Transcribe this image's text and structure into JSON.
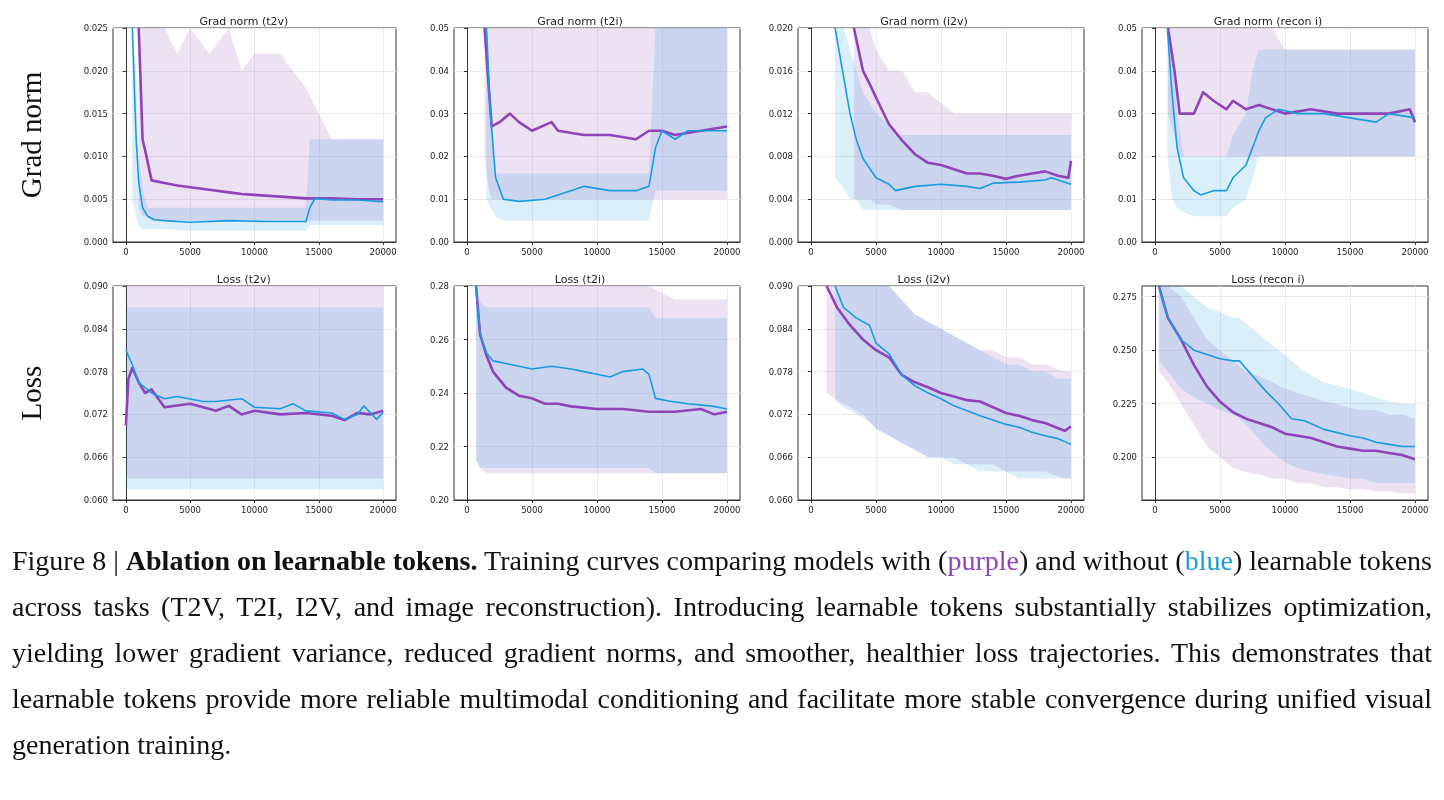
{
  "chart_data": [
    {
      "type": "line",
      "title": "Grad norm (t2v)",
      "ylabel": "Grad norm",
      "grid": true,
      "xlim": [
        -1000,
        21000
      ],
      "xticks": [
        0,
        5000,
        10000,
        15000,
        20000
      ],
      "ylim": [
        0,
        0.025
      ],
      "yticks": [
        {
          "value": 0,
          "label": "0.000"
        },
        {
          "value": 0.005,
          "label": "0.005"
        },
        {
          "value": 0.01,
          "label": "0.010"
        },
        {
          "value": 0.015,
          "label": "0.015"
        },
        {
          "value": 0.02,
          "label": "0.020"
        },
        {
          "value": 0.025,
          "label": "0.025"
        }
      ],
      "annotations": [
        "Figure 8 | ",
        "Ablation on learnable tokens.",
        " Training curves comparing models with (",
        "purple",
        ") and without (",
        "blue",
        ") learnable tokens across tasks (T2V, T2I, I2V, and image reconstruction). Introducing learnable tokens substantially stabilizes optimization, yielding lower gradient variance, reduced gradient norms, and smoother, healthier loss trajectories. This demonstrates that learnable tokens provide more reliable multimodal conditioning and facilitate more stable convergence during unified visual generation training."
      ],
      "series": [
        {
          "color": "#8e44b8",
          "x": [
            1000,
            1300,
            1600,
            2000,
            3000,
            4000,
            5000,
            6500,
            8000,
            9000,
            10000,
            12000,
            14000,
            16000,
            18000,
            20000
          ],
          "values": [
            0.025,
            0.012,
            0.01,
            0.0072,
            0.0069,
            0.0066,
            0.0064,
            0.0061,
            0.0058,
            0.0056,
            0.0055,
            0.0053,
            0.0051,
            0.0051,
            0.005,
            0.005
          ],
          "lower": [
            0.004,
            0.003,
            0.003,
            0.0025,
            0.0025,
            0.0025,
            0.0025,
            0.0025,
            0.0025,
            0.0025,
            0.0025,
            0.0025,
            0.0025,
            0.0025,
            0.0025,
            0.0025
          ],
          "upper": [
            0.025,
            0.025,
            0.025,
            0.025,
            0.025,
            0.022,
            0.025,
            0.022,
            0.025,
            0.02,
            0.022,
            0.022,
            0.018,
            0.012,
            0.012,
            0.012
          ]
        },
        {
          "color": "#1a9be0",
          "x": [
            500,
            800,
            1000,
            1300,
            1700,
            2200,
            3000,
            5000,
            8000,
            11000,
            14000,
            14300,
            14700,
            16000,
            18000,
            20000
          ],
          "values": [
            0.025,
            0.012,
            0.007,
            0.004,
            0.003,
            0.0026,
            0.0025,
            0.0023,
            0.0025,
            0.0024,
            0.0024,
            0.004,
            0.0051,
            0.0049,
            0.0049,
            0.0047
          ],
          "lower": [
            0.005,
            0.003,
            0.002,
            0.0015,
            0.0015,
            0.0015,
            0.0015,
            0.0013,
            0.0013,
            0.0013,
            0.0013,
            0.002,
            0.002,
            0.002,
            0.002,
            0.002
          ],
          "upper": [
            0.025,
            0.02,
            0.01,
            0.006,
            0.004,
            0.004,
            0.004,
            0.004,
            0.004,
            0.004,
            0.004,
            0.012,
            0.012,
            0.012,
            0.012,
            0.012
          ]
        }
      ]
    },
    {
      "type": "line",
      "title": "Grad norm (t2i)",
      "grid": true,
      "xlim": [
        -1000,
        21000
      ],
      "xticks": [
        0,
        5000,
        10000,
        15000,
        20000
      ],
      "ylim": [
        0,
        0.05
      ],
      "yticks": [
        {
          "value": 0,
          "label": "0.00"
        },
        {
          "value": 0.01,
          "label": "0.01"
        },
        {
          "value": 0.02,
          "label": "0.02"
        },
        {
          "value": 0.03,
          "label": "0.03"
        },
        {
          "value": 0.04,
          "label": "0.04"
        },
        {
          "value": 0.05,
          "label": "0.05"
        }
      ],
      "series": [
        {
          "color": "#8e44b8",
          "x": [
            1350,
            1700,
            1900,
            2500,
            3300,
            4000,
            5000,
            6500,
            7000,
            9000,
            11000,
            13000,
            14000,
            15000,
            16000,
            18000,
            20000
          ],
          "values": [
            0.05,
            0.035,
            0.027,
            0.028,
            0.03,
            0.028,
            0.026,
            0.028,
            0.026,
            0.025,
            0.025,
            0.024,
            0.026,
            0.026,
            0.025,
            0.026,
            0.027
          ],
          "lower": [
            0.02,
            0.012,
            0.01,
            0.01,
            0.01,
            0.01,
            0.01,
            0.01,
            0.01,
            0.01,
            0.01,
            0.01,
            0.01,
            0.01,
            0.01,
            0.01,
            0.01
          ],
          "upper": [
            0.05,
            0.05,
            0.05,
            0.05,
            0.05,
            0.05,
            0.05,
            0.05,
            0.05,
            0.05,
            0.05,
            0.05,
            0.05,
            0.05,
            0.05,
            0.05,
            0.05
          ]
        },
        {
          "color": "#1a9be0",
          "x": [
            1500,
            1800,
            2200,
            2800,
            4000,
            6000,
            8000,
            9000,
            11000,
            13000,
            14000,
            14500,
            15000,
            16000,
            17000,
            18000,
            20000
          ],
          "values": [
            0.05,
            0.03,
            0.015,
            0.01,
            0.0095,
            0.01,
            0.012,
            0.013,
            0.012,
            0.012,
            0.013,
            0.022,
            0.026,
            0.024,
            0.026,
            0.026,
            0.026
          ],
          "lower": [
            0.01,
            0.008,
            0.006,
            0.005,
            0.005,
            0.005,
            0.005,
            0.005,
            0.005,
            0.005,
            0.005,
            0.012,
            0.012,
            0.012,
            0.012,
            0.012,
            0.012
          ],
          "upper": [
            0.05,
            0.035,
            0.016,
            0.016,
            0.016,
            0.016,
            0.016,
            0.016,
            0.016,
            0.016,
            0.016,
            0.05,
            0.05,
            0.05,
            0.05,
            0.05,
            0.05
          ]
        }
      ]
    },
    {
      "type": "line",
      "title": "Grad norm (i2v)",
      "grid": true,
      "xlim": [
        -1000,
        21000
      ],
      "xticks": [
        0,
        5000,
        10000,
        15000,
        20000
      ],
      "ylim": [
        0,
        0.02
      ],
      "yticks": [
        {
          "value": 0,
          "label": "0.000"
        },
        {
          "value": 0.004,
          "label": "0.004"
        },
        {
          "value": 0.008,
          "label": "0.008"
        },
        {
          "value": 0.012,
          "label": "0.012"
        },
        {
          "value": 0.016,
          "label": "0.016"
        },
        {
          "value": 0.02,
          "label": "0.020"
        }
      ],
      "series": [
        {
          "color": "#8e44b8",
          "x": [
            3300,
            4000,
            4500,
            5000,
            6000,
            7000,
            8000,
            9000,
            10000,
            11000,
            12000,
            13000,
            14000,
            15000,
            16000,
            17000,
            18000,
            19000,
            19800,
            20000
          ],
          "values": [
            0.02,
            0.016,
            0.0148,
            0.0135,
            0.011,
            0.0095,
            0.0082,
            0.0074,
            0.0072,
            0.0068,
            0.0064,
            0.0064,
            0.0062,
            0.0059,
            0.0062,
            0.0064,
            0.0066,
            0.0062,
            0.006,
            0.0076
          ],
          "lower": [
            0.004,
            0.004,
            0.004,
            0.0035,
            0.0035,
            0.003,
            0.003,
            0.003,
            0.003,
            0.003,
            0.003,
            0.003,
            0.003,
            0.003,
            0.003,
            0.003,
            0.003,
            0.003,
            0.003,
            0.003
          ],
          "upper": [
            0.02,
            0.02,
            0.02,
            0.018,
            0.016,
            0.016,
            0.014,
            0.014,
            0.013,
            0.012,
            0.012,
            0.012,
            0.012,
            0.012,
            0.012,
            0.012,
            0.012,
            0.012,
            0.012,
            0.012
          ]
        },
        {
          "color": "#1a9be0",
          "x": [
            1850,
            2500,
            3000,
            3500,
            4000,
            5000,
            6000,
            6500,
            8000,
            10000,
            12000,
            13000,
            14000,
            16000,
            18000,
            18500,
            20000
          ],
          "values": [
            0.02,
            0.0155,
            0.012,
            0.0095,
            0.0078,
            0.006,
            0.0054,
            0.0048,
            0.0052,
            0.0054,
            0.0052,
            0.005,
            0.0055,
            0.0056,
            0.0058,
            0.006,
            0.0054
          ],
          "lower": [
            0.006,
            0.005,
            0.004,
            0.004,
            0.003,
            0.003,
            0.003,
            0.003,
            0.003,
            0.003,
            0.003,
            0.003,
            0.003,
            0.003,
            0.003,
            0.003,
            0.003
          ],
          "upper": [
            0.02,
            0.02,
            0.018,
            0.016,
            0.014,
            0.012,
            0.011,
            0.01,
            0.01,
            0.01,
            0.01,
            0.01,
            0.01,
            0.01,
            0.01,
            0.01,
            0.01
          ]
        }
      ]
    },
    {
      "type": "line",
      "title": "Grad norm (recon i)",
      "grid": true,
      "xlim": [
        -1000,
        21000
      ],
      "xticks": [
        0,
        5000,
        10000,
        15000,
        20000
      ],
      "ylim": [
        0,
        0.05
      ],
      "yticks": [
        {
          "value": 0,
          "label": "0.00"
        },
        {
          "value": 0.01,
          "label": "0.01"
        },
        {
          "value": 0.02,
          "label": "0.02"
        },
        {
          "value": 0.03,
          "label": "0.03"
        },
        {
          "value": 0.04,
          "label": "0.04"
        },
        {
          "value": 0.05,
          "label": "0.05"
        }
      ],
      "series": [
        {
          "color": "#8e44b8",
          "x": [
            1000,
            1500,
            1900,
            2500,
            3000,
            3700,
            4500,
            5500,
            6000,
            7000,
            8000,
            9000,
            10000,
            12000,
            14000,
            16000,
            18000,
            19600,
            20000
          ],
          "values": [
            0.05,
            0.04,
            0.03,
            0.03,
            0.03,
            0.035,
            0.033,
            0.031,
            0.033,
            0.031,
            0.032,
            0.031,
            0.03,
            0.031,
            0.03,
            0.03,
            0.03,
            0.031,
            0.028
          ],
          "lower": [
            0.03,
            0.025,
            0.02,
            0.02,
            0.02,
            0.02,
            0.02,
            0.02,
            0.02,
            0.02,
            0.02,
            0.02,
            0.02,
            0.02,
            0.02,
            0.02,
            0.02,
            0.02,
            0.02
          ],
          "upper": [
            0.05,
            0.05,
            0.05,
            0.05,
            0.05,
            0.05,
            0.05,
            0.05,
            0.05,
            0.05,
            0.05,
            0.05,
            0.045,
            0.045,
            0.045,
            0.045,
            0.045,
            0.045,
            0.045
          ]
        },
        {
          "color": "#1a9be0",
          "x": [
            950,
            1300,
            1700,
            2200,
            3000,
            3500,
            4500,
            5500,
            6000,
            7000,
            7500,
            8000,
            8500,
            9500,
            11000,
            13000,
            15000,
            17000,
            18000,
            20000
          ],
          "values": [
            0.05,
            0.035,
            0.022,
            0.015,
            0.012,
            0.011,
            0.012,
            0.012,
            0.015,
            0.018,
            0.022,
            0.026,
            0.029,
            0.031,
            0.03,
            0.03,
            0.029,
            0.028,
            0.03,
            0.029
          ],
          "lower": [
            0.02,
            0.01,
            0.008,
            0.007,
            0.006,
            0.006,
            0.006,
            0.006,
            0.008,
            0.01,
            0.015,
            0.02,
            0.02,
            0.02,
            0.02,
            0.02,
            0.02,
            0.02,
            0.02,
            0.02
          ],
          "upper": [
            0.05,
            0.045,
            0.03,
            0.02,
            0.02,
            0.02,
            0.02,
            0.02,
            0.025,
            0.03,
            0.04,
            0.045,
            0.045,
            0.045,
            0.045,
            0.045,
            0.045,
            0.045,
            0.045,
            0.045
          ]
        }
      ]
    },
    {
      "type": "line",
      "title": "Loss (t2v)",
      "ylabel": "Loss",
      "grid": true,
      "xlim": [
        -1000,
        21000
      ],
      "xticks": [
        0,
        5000,
        10000,
        15000,
        20000
      ],
      "ylim": [
        0.06,
        0.09
      ],
      "yticks": [
        {
          "value": 0.06,
          "label": "0.060"
        },
        {
          "value": 0.066,
          "label": "0.066"
        },
        {
          "value": 0.072,
          "label": "0.072"
        },
        {
          "value": 0.078,
          "label": "0.078"
        },
        {
          "value": 0.084,
          "label": "0.084"
        },
        {
          "value": 0.09,
          "label": "0.090"
        }
      ],
      "series": [
        {
          "color": "#8e44b8",
          "x": [
            0,
            200,
            500,
            1000,
            1500,
            2000,
            3000,
            5000,
            7000,
            8000,
            9000,
            10000,
            12000,
            14000,
            16000,
            17000,
            18000,
            19000,
            20000
          ],
          "values": [
            0.0705,
            0.077,
            0.0785,
            0.0765,
            0.075,
            0.0755,
            0.073,
            0.0735,
            0.0725,
            0.0732,
            0.072,
            0.0725,
            0.072,
            0.0722,
            0.0718,
            0.0712,
            0.0722,
            0.072,
            0.0725
          ],
          "lower": [
            0.064,
            0.063,
            0.063,
            0.063,
            0.063,
            0.063,
            0.063,
            0.063,
            0.063,
            0.063,
            0.063,
            0.063,
            0.063,
            0.063,
            0.063,
            0.063,
            0.063,
            0.063,
            0.063
          ],
          "upper": [
            0.09,
            0.09,
            0.09,
            0.09,
            0.09,
            0.09,
            0.09,
            0.09,
            0.09,
            0.09,
            0.09,
            0.09,
            0.09,
            0.09,
            0.09,
            0.09,
            0.09,
            0.09,
            0.09
          ]
        },
        {
          "color": "#1a9be0",
          "x": [
            0,
            500,
            1000,
            2000,
            3000,
            4000,
            6000,
            7000,
            9000,
            10000,
            12000,
            13000,
            14000,
            16000,
            17000,
            18000,
            18500,
            19500,
            20000
          ],
          "values": [
            0.081,
            0.079,
            0.0765,
            0.075,
            0.0742,
            0.0745,
            0.0738,
            0.0738,
            0.0742,
            0.073,
            0.0728,
            0.0735,
            0.0725,
            0.0722,
            0.0713,
            0.072,
            0.0732,
            0.0713,
            0.0723
          ],
          "lower": [
            0.0615,
            0.0615,
            0.0615,
            0.0615,
            0.0615,
            0.0615,
            0.0615,
            0.0615,
            0.0615,
            0.0615,
            0.0615,
            0.0615,
            0.0615,
            0.0615,
            0.0615,
            0.0615,
            0.0615,
            0.0615,
            0.0615
          ],
          "upper": [
            0.087,
            0.087,
            0.087,
            0.087,
            0.087,
            0.087,
            0.087,
            0.087,
            0.087,
            0.087,
            0.087,
            0.087,
            0.087,
            0.087,
            0.087,
            0.087,
            0.087,
            0.087,
            0.087
          ]
        }
      ]
    },
    {
      "type": "line",
      "title": "Loss (t2i)",
      "grid": true,
      "xlim": [
        -1000,
        21000
      ],
      "xticks": [
        0,
        5000,
        10000,
        15000,
        20000
      ],
      "ylim": [
        0.2,
        0.28
      ],
      "yticks": [
        {
          "value": 0.2,
          "label": "0.20"
        },
        {
          "value": 0.22,
          "label": "0.22"
        },
        {
          "value": 0.24,
          "label": "0.24"
        },
        {
          "value": 0.26,
          "label": "0.26"
        },
        {
          "value": 0.28,
          "label": "0.28"
        }
      ],
      "series": [
        {
          "color": "#8e44b8",
          "x": [
            700,
            1000,
            1500,
            2000,
            3000,
            4000,
            5000,
            6000,
            7000,
            8000,
            10000,
            12000,
            14000,
            16000,
            18000,
            19000,
            20000
          ],
          "values": [
            0.28,
            0.262,
            0.254,
            0.248,
            0.242,
            0.239,
            0.238,
            0.236,
            0.236,
            0.235,
            0.234,
            0.234,
            0.233,
            0.233,
            0.234,
            0.232,
            0.233
          ],
          "lower": [
            0.215,
            0.212,
            0.21,
            0.21,
            0.21,
            0.21,
            0.21,
            0.21,
            0.21,
            0.21,
            0.21,
            0.21,
            0.21,
            0.21,
            0.21,
            0.21,
            0.21
          ],
          "upper": [
            0.28,
            0.28,
            0.28,
            0.28,
            0.28,
            0.28,
            0.28,
            0.28,
            0.28,
            0.28,
            0.28,
            0.28,
            0.28,
            0.275,
            0.275,
            0.275,
            0.275
          ]
        },
        {
          "color": "#1a9be0",
          "x": [
            700,
            1000,
            1500,
            2000,
            3000,
            4000,
            5000,
            6500,
            8000,
            9000,
            10000,
            11000,
            12000,
            13500,
            14000,
            14500,
            15500,
            17000,
            19000,
            20000
          ],
          "values": [
            0.28,
            0.262,
            0.255,
            0.252,
            0.251,
            0.25,
            0.249,
            0.25,
            0.249,
            0.248,
            0.247,
            0.246,
            0.248,
            0.249,
            0.247,
            0.238,
            0.237,
            0.236,
            0.235,
            0.234
          ],
          "lower": [
            0.215,
            0.212,
            0.212,
            0.212,
            0.212,
            0.212,
            0.212,
            0.212,
            0.212,
            0.212,
            0.212,
            0.212,
            0.212,
            0.212,
            0.212,
            0.21,
            0.21,
            0.21,
            0.21,
            0.21
          ],
          "upper": [
            0.276,
            0.274,
            0.272,
            0.272,
            0.272,
            0.272,
            0.272,
            0.272,
            0.272,
            0.272,
            0.272,
            0.272,
            0.272,
            0.272,
            0.272,
            0.268,
            0.268,
            0.268,
            0.268,
            0.268
          ]
        }
      ]
    },
    {
      "type": "line",
      "title": "Loss (i2v)",
      "grid": true,
      "xlim": [
        -1000,
        21000
      ],
      "xticks": [
        0,
        5000,
        10000,
        15000,
        20000
      ],
      "ylim": [
        0.06,
        0.09
      ],
      "yticks": [
        {
          "value": 0.06,
          "label": "0.060"
        },
        {
          "value": 0.066,
          "label": "0.066"
        },
        {
          "value": 0.072,
          "label": "0.072"
        },
        {
          "value": 0.078,
          "label": "0.078"
        },
        {
          "value": 0.084,
          "label": "0.084"
        },
        {
          "value": 0.09,
          "label": "0.090"
        }
      ],
      "series": [
        {
          "color": "#8e44b8",
          "x": [
            1200,
            2000,
            3000,
            4000,
            5000,
            6000,
            7000,
            8000,
            9000,
            10000,
            11000,
            12000,
            13000,
            14000,
            15000,
            16000,
            17000,
            18000,
            19500,
            20000
          ],
          "values": [
            0.09,
            0.087,
            0.0845,
            0.0825,
            0.081,
            0.08,
            0.0775,
            0.0765,
            0.0758,
            0.075,
            0.0745,
            0.074,
            0.0738,
            0.073,
            0.0722,
            0.0718,
            0.0712,
            0.0708,
            0.0697,
            0.0703
          ],
          "lower": [
            0.075,
            0.074,
            0.073,
            0.072,
            0.07,
            0.069,
            0.068,
            0.067,
            0.066,
            0.066,
            0.066,
            0.065,
            0.065,
            0.065,
            0.064,
            0.064,
            0.064,
            0.064,
            0.063,
            0.063
          ],
          "upper": [
            0.09,
            0.09,
            0.09,
            0.09,
            0.09,
            0.09,
            0.088,
            0.086,
            0.085,
            0.084,
            0.083,
            0.082,
            0.081,
            0.081,
            0.08,
            0.08,
            0.079,
            0.079,
            0.078,
            0.078
          ]
        },
        {
          "color": "#1a9be0",
          "x": [
            1850,
            2500,
            3500,
            4500,
            5000,
            6000,
            7000,
            8000,
            9000,
            10000,
            11000,
            12000,
            13000,
            14000,
            15000,
            16000,
            17000,
            18000,
            19000,
            20000
          ],
          "values": [
            0.09,
            0.087,
            0.0855,
            0.0845,
            0.082,
            0.0805,
            0.0775,
            0.076,
            0.075,
            0.0742,
            0.0732,
            0.0725,
            0.0718,
            0.0712,
            0.0706,
            0.0702,
            0.0695,
            0.069,
            0.0686,
            0.0678
          ],
          "lower": [
            0.074,
            0.073,
            0.072,
            0.071,
            0.07,
            0.069,
            0.068,
            0.067,
            0.066,
            0.066,
            0.065,
            0.065,
            0.064,
            0.064,
            0.064,
            0.063,
            0.063,
            0.063,
            0.063,
            0.063
          ],
          "upper": [
            0.09,
            0.09,
            0.09,
            0.09,
            0.09,
            0.09,
            0.088,
            0.086,
            0.085,
            0.084,
            0.083,
            0.082,
            0.081,
            0.08,
            0.079,
            0.079,
            0.078,
            0.078,
            0.077,
            0.077
          ]
        }
      ]
    },
    {
      "type": "line",
      "title": "Loss (recon i)",
      "grid": true,
      "xlim": [
        -1000,
        21000
      ],
      "xticks": [
        0,
        5000,
        10000,
        15000,
        20000
      ],
      "ylim": [
        0.18,
        0.28
      ],
      "yticks": [
        {
          "value": 0.2,
          "label": "0.200"
        },
        {
          "value": 0.225,
          "label": "0.225"
        },
        {
          "value": 0.25,
          "label": "0.250"
        },
        {
          "value": 0.275,
          "label": "0.275"
        }
      ],
      "series": [
        {
          "color": "#8e44b8",
          "x": [
            300,
            1000,
            2000,
            3000,
            4000,
            5000,
            6000,
            7000,
            8000,
            9000,
            10000,
            11000,
            12000,
            13000,
            14000,
            15000,
            16000,
            17000,
            18000,
            19000,
            20000
          ],
          "values": [
            0.28,
            0.265,
            0.255,
            0.243,
            0.233,
            0.226,
            0.221,
            0.218,
            0.216,
            0.214,
            0.211,
            0.21,
            0.209,
            0.207,
            0.205,
            0.204,
            0.203,
            0.203,
            0.202,
            0.201,
            0.199
          ],
          "lower": [
            0.24,
            0.235,
            0.225,
            0.215,
            0.205,
            0.2,
            0.195,
            0.193,
            0.192,
            0.19,
            0.19,
            0.188,
            0.188,
            0.186,
            0.186,
            0.185,
            0.185,
            0.184,
            0.184,
            0.183,
            0.183
          ],
          "upper": [
            0.28,
            0.28,
            0.275,
            0.265,
            0.255,
            0.25,
            0.245,
            0.24,
            0.238,
            0.235,
            0.232,
            0.23,
            0.228,
            0.226,
            0.225,
            0.223,
            0.222,
            0.222,
            0.22,
            0.22,
            0.218
          ]
        },
        {
          "color": "#1a9be0",
          "x": [
            300,
            1000,
            2000,
            3000,
            4000,
            5000,
            6000,
            6500,
            7500,
            8500,
            9500,
            10500,
            11500,
            13000,
            15000,
            16000,
            17000,
            18000,
            19000,
            20000
          ],
          "values": [
            0.28,
            0.265,
            0.255,
            0.25,
            0.248,
            0.246,
            0.245,
            0.245,
            0.238,
            0.231,
            0.225,
            0.218,
            0.217,
            0.213,
            0.21,
            0.209,
            0.207,
            0.206,
            0.205,
            0.205
          ],
          "lower": [
            0.245,
            0.24,
            0.232,
            0.228,
            0.225,
            0.222,
            0.22,
            0.218,
            0.212,
            0.205,
            0.2,
            0.196,
            0.194,
            0.192,
            0.19,
            0.19,
            0.188,
            0.188,
            0.188,
            0.188
          ],
          "upper": [
            0.28,
            0.28,
            0.28,
            0.275,
            0.27,
            0.268,
            0.265,
            0.265,
            0.26,
            0.255,
            0.25,
            0.245,
            0.24,
            0.235,
            0.232,
            0.23,
            0.228,
            0.226,
            0.225,
            0.225
          ]
        }
      ]
    }
  ]
}
